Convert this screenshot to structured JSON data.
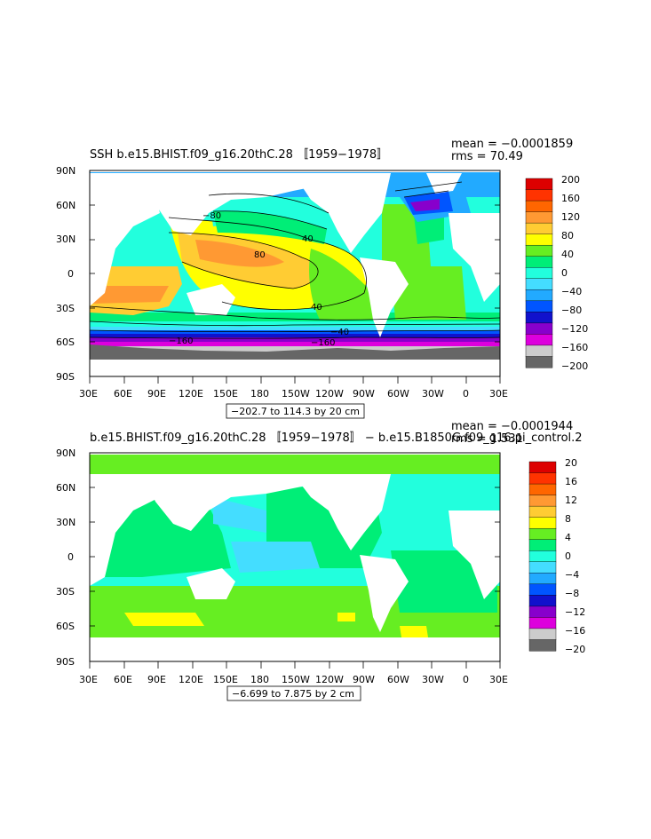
{
  "panels": [
    {
      "title": "SSH b.e15.BHIST.f09_g16.20thC.28 〚1959−1978〛",
      "mean_text": "mean = −0.0001859",
      "rms_text": "rms = 70.49",
      "range_text": "−202.7 to 114.3 by 20 cm",
      "colorbar_labels": [
        "200",
        "160",
        "120",
        "80",
        "40",
        "0",
        "−40",
        "−80",
        "−120",
        "−160",
        "−200"
      ],
      "contour_labels": [
        "−80",
        "40",
        "80",
        "40",
        "−40",
        "−160",
        "−160"
      ]
    },
    {
      "title": "b.e15.BHIST.f09_g16.20thC.28 〚1959−1978〛 − b.e15.B1850G.f09_g16.pi_control.2",
      "mean_text": "mean = −0.0001944",
      "rms_text": "rms = 1.531",
      "range_text": "−6.699 to 7.875 by 2 cm",
      "colorbar_labels": [
        "20",
        "16",
        "12",
        "8",
        "4",
        "0",
        "−4",
        "−8",
        "−12",
        "−16",
        "−20"
      ]
    }
  ],
  "axes": {
    "lat_labels": [
      "90N",
      "60N",
      "30N",
      "0",
      "30S",
      "60S",
      "90S"
    ],
    "lon_labels": [
      "30E",
      "60E",
      "90E",
      "120E",
      "150E",
      "180",
      "150W",
      "120W",
      "90W",
      "60W",
      "30W",
      "0",
      "30E"
    ]
  },
  "colorbar_colors": [
    "#dd0000",
    "#ff3300",
    "#ff6600",
    "#ff9933",
    "#ffcc33",
    "#ffff00",
    "#66ee22",
    "#00ee77",
    "#22ffdd",
    "#44ddff",
    "#22aaff",
    "#0055ff",
    "#1111cc",
    "#8800cc",
    "#dd00dd",
    "#cccccc",
    "#666666"
  ],
  "map_colors": {
    "land": "#ffffff",
    "ice": "#666666",
    "grey_light": "#cccccc"
  }
}
